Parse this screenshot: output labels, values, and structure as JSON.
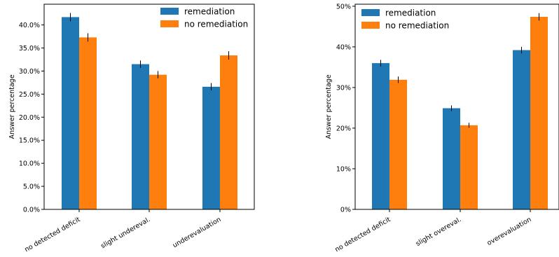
{
  "chart_data": [
    {
      "type": "bar",
      "title": "",
      "xlabel": "",
      "ylabel": "Answer percentage",
      "ylim": [
        0,
        44.5
      ],
      "categories": [
        "no detected deficit",
        "slight undereval.",
        "underevaluation"
      ],
      "yticks": [
        0,
        5,
        10,
        15,
        20,
        25,
        30,
        35,
        40
      ],
      "ytick_labels": [
        "0.0%",
        "5.0%",
        "10.0%",
        "15.0%",
        "20.0%",
        "25.0%",
        "30.0%",
        "35.0%",
        "40.0%"
      ],
      "series": [
        {
          "name": "remediation",
          "color": "#1f77b4",
          "values": [
            41.7,
            31.5,
            26.6
          ],
          "errors": [
            0.9,
            0.8,
            0.8
          ]
        },
        {
          "name": "no remediation",
          "color": "#ff7f0e",
          "values": [
            37.3,
            29.2,
            33.4
          ],
          "errors": [
            0.9,
            0.8,
            0.9
          ]
        }
      ],
      "legend_position": "top-right",
      "grid": false
    },
    {
      "type": "bar",
      "title": "",
      "xlabel": "",
      "ylabel": "Answer percentage",
      "ylim": [
        0,
        50.5
      ],
      "categories": [
        "no detected deficit",
        "slight overeval.",
        "overevaluation"
      ],
      "yticks": [
        0,
        10,
        20,
        30,
        40,
        50
      ],
      "ytick_labels": [
        "0%",
        "10%",
        "20%",
        "30%",
        "40%",
        "50%"
      ],
      "series": [
        {
          "name": "remediation",
          "color": "#1f77b4",
          "values": [
            36.0,
            24.9,
            39.2
          ],
          "errors": [
            0.8,
            0.7,
            0.8
          ]
        },
        {
          "name": "no remediation",
          "color": "#ff7f0e",
          "values": [
            31.9,
            20.7,
            47.4
          ],
          "errors": [
            0.8,
            0.6,
            0.9
          ]
        }
      ],
      "legend_position": "top-left",
      "grid": false
    }
  ]
}
